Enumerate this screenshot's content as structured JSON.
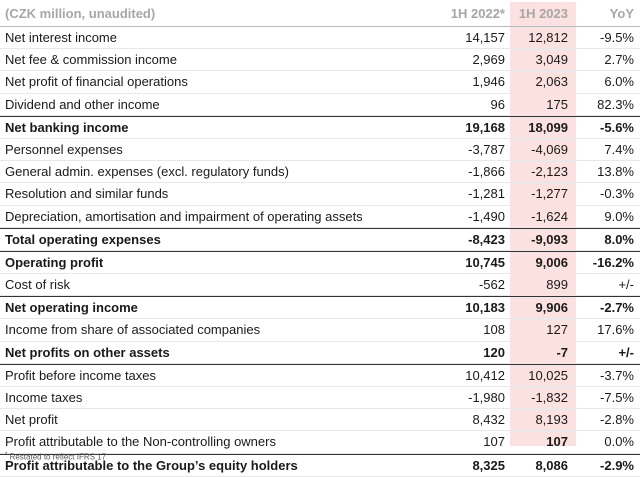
{
  "header": {
    "label": "(CZK million, unaudited)",
    "col_2022": "1H 2022*",
    "col_2023": "1H 2023",
    "col_yoy": "YoY"
  },
  "rows": [
    {
      "label": "Net interest income",
      "v2022": "14,157",
      "v2023": "12,812",
      "yoy": "-9.5%"
    },
    {
      "label": "Net fee & commission income",
      "v2022": "2,969",
      "v2023": "3,049",
      "yoy": "2.7%"
    },
    {
      "label": "Net profit of financial operations",
      "v2022": "1,946",
      "v2023": "2,063",
      "yoy": "6.0%"
    },
    {
      "label": "Dividend and other income",
      "v2022": "96",
      "v2023": "175",
      "yoy": "82.3%"
    },
    {
      "label": "Net banking income",
      "v2022": "19,168",
      "v2023": "18,099",
      "yoy": "-5.6%"
    },
    {
      "label": "Personnel expenses",
      "v2022": "-3,787",
      "v2023": "-4,069",
      "yoy": "7.4%"
    },
    {
      "label": "General admin. expenses (excl. regulatory funds)",
      "v2022": "-1,866",
      "v2023": "-2,123",
      "yoy": "13.8%"
    },
    {
      "label": "Resolution and similar funds",
      "v2022": "-1,281",
      "v2023": "-1,277",
      "yoy": "-0.3%"
    },
    {
      "label": "Depreciation, amortisation and impairment of operating assets",
      "v2022": "-1,490",
      "v2023": "-1,624",
      "yoy": "9.0%"
    },
    {
      "label": "Total operating expenses",
      "v2022": "-8,423",
      "v2023": "-9,093",
      "yoy": "8.0%"
    },
    {
      "label": "Operating profit",
      "v2022": "10,745",
      "v2023": "9,006",
      "yoy": "-16.2%"
    },
    {
      "label": "Cost of risk",
      "v2022": "-562",
      "v2023": "899",
      "yoy": "+/-"
    },
    {
      "label": "Net operating income",
      "v2022": "10,183",
      "v2023": "9,906",
      "yoy": "-2.7%"
    },
    {
      "label": "Income from share of associated companies",
      "v2022": "108",
      "v2023": "127",
      "yoy": "17.6%"
    },
    {
      "label": "Net profits on other assets",
      "v2022": "120",
      "v2023": "-7",
      "yoy": "+/-"
    },
    {
      "label": "Profit before income taxes",
      "v2022": "10,412",
      "v2023": "10,025",
      "yoy": "-3.7%"
    },
    {
      "label": "Income taxes",
      "v2022": "-1,980",
      "v2023": "-1,832",
      "yoy": "-7.5%"
    },
    {
      "label": "Net profit",
      "v2022": "8,432",
      "v2023": "8,193",
      "yoy": "-2.8%"
    },
    {
      "label": "Profit attributable to the Non-controlling owners",
      "v2022": "107",
      "v2023": "107",
      "yoy": "0.0%"
    },
    {
      "label": "Profit attributable to the Group’s equity holders",
      "v2022": "8,325",
      "v2023": "8,086",
      "yoy": "-2.9%"
    }
  ],
  "footnote": {
    "mark": "*",
    "text": "Restated to reflect IFRS 17"
  }
}
